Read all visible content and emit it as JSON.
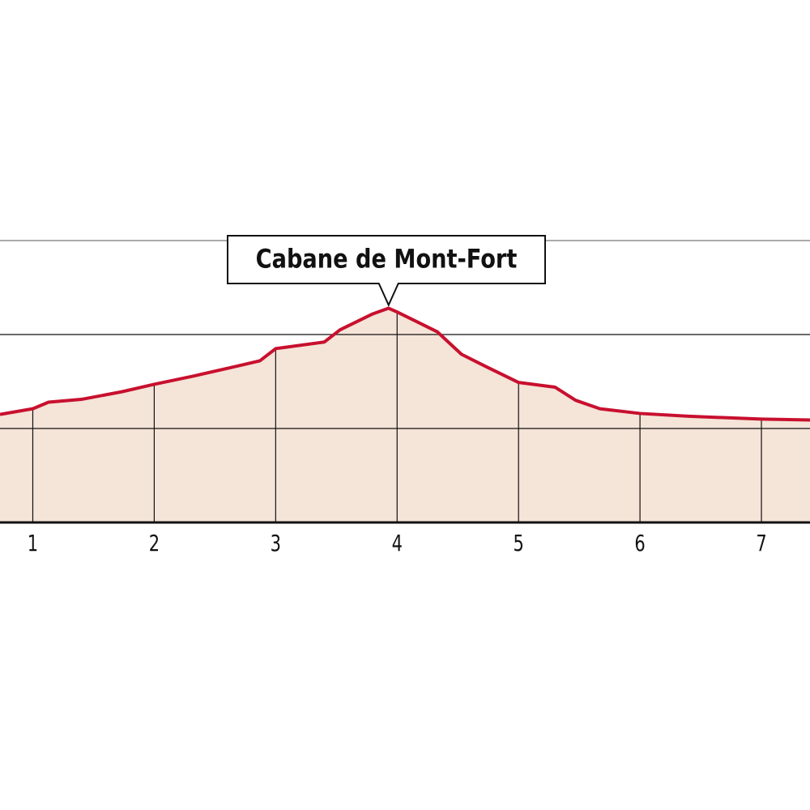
{
  "chart_data": {
    "type": "area",
    "annotations": [
      {
        "text": "Cabane de Mont-Fort"
      }
    ],
    "x": [
      0.73,
      1.0,
      1.13,
      1.4,
      1.73,
      2.0,
      2.33,
      2.67,
      2.87,
      3.0,
      3.4,
      3.53,
      3.8,
      3.93,
      4.0,
      4.33,
      4.53,
      4.73,
      5.0,
      5.3,
      5.47,
      5.67,
      6.0,
      6.4,
      7.0,
      7.4
    ],
    "y": [
      1.15,
      1.21,
      1.28,
      1.31,
      1.39,
      1.47,
      1.56,
      1.66,
      1.72,
      1.85,
      1.92,
      2.05,
      2.22,
      2.28,
      2.24,
      2.03,
      1.79,
      1.66,
      1.49,
      1.44,
      1.3,
      1.21,
      1.16,
      1.13,
      1.1,
      1.09
    ],
    "color": "#c8102e",
    "fill": "#f5e4d8",
    "xlim": [
      0.73,
      7.4
    ],
    "xticks": [
      1,
      2,
      3,
      4,
      5,
      6,
      7
    ],
    "ylim": [
      0,
      3
    ],
    "yticks": [
      1,
      2,
      3
    ],
    "grid": true
  }
}
